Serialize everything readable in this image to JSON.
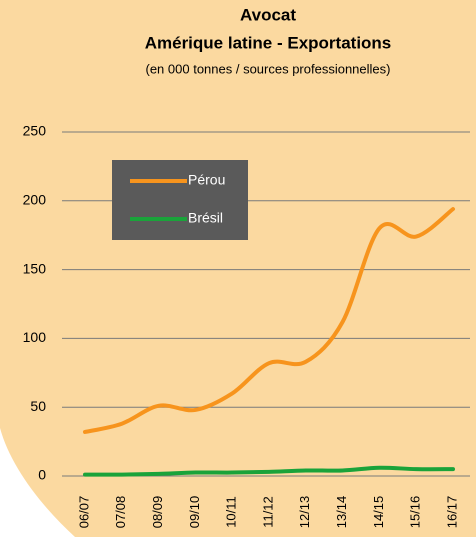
{
  "chart_data": {
    "type": "line",
    "title": "Avocat",
    "subtitle": "Amérique latine - Exportations",
    "note": "(en 000 tonnes / sources professionnelles)",
    "categories": [
      "06/07",
      "07/08",
      "08/09",
      "09/10",
      "10/11",
      "11/12",
      "12/13",
      "13/14",
      "14/15",
      "15/16",
      "16/17"
    ],
    "series": [
      {
        "name": "Pérou",
        "color": "#f7941d",
        "values": [
          32,
          38,
          51,
          48,
          60,
          82,
          83,
          112,
          180,
          174,
          194
        ]
      },
      {
        "name": "Brésil",
        "color": "#1aa33a",
        "values": [
          1,
          1,
          1.5,
          2.5,
          2.5,
          3,
          4,
          4,
          6,
          5,
          5
        ]
      }
    ],
    "ylim": [
      0,
      250
    ],
    "yticks": [
      0,
      50,
      100,
      150,
      200,
      250
    ],
    "grid": true,
    "legend": "upper left"
  }
}
